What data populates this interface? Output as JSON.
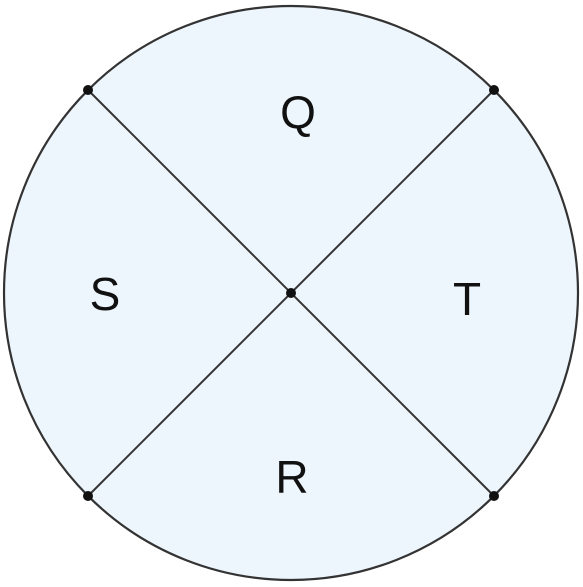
{
  "diagram": {
    "type": "circle-divided-by-two-diameters",
    "colors": {
      "fill": "#EEF6FD",
      "stroke": "#333333",
      "points": "#111111",
      "labels": "#111111"
    },
    "regions": [
      {
        "id": "top",
        "label": "Q"
      },
      {
        "id": "left",
        "label": "S"
      },
      {
        "id": "right",
        "label": "T"
      },
      {
        "id": "bottom",
        "label": "R"
      }
    ]
  }
}
